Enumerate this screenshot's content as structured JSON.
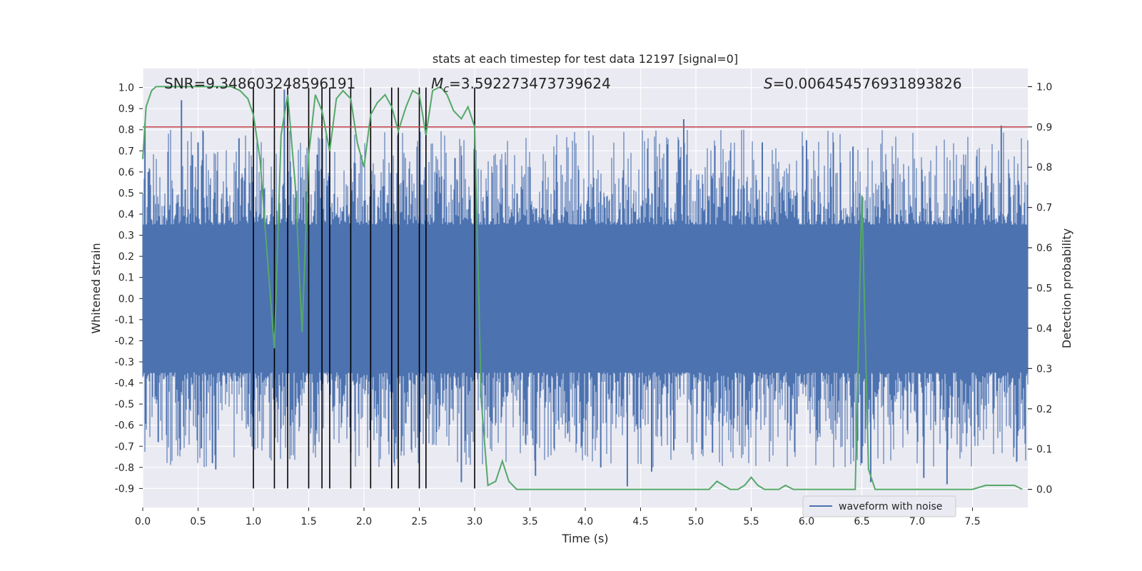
{
  "chart_data": {
    "type": "line",
    "title": "stats at each timestep for test data 12197 [signal=0]",
    "xlabel": "Time (s)",
    "ylabel_left": "Whitened strain",
    "ylabel_right": "Detection probability",
    "xlim": [
      0.0,
      8.0
    ],
    "ylim_left": [
      -0.99,
      1.09
    ],
    "ylim_right": [
      -0.045,
      1.045
    ],
    "x_ticks": [
      "0.0",
      "0.5",
      "1.0",
      "1.5",
      "2.0",
      "2.5",
      "3.0",
      "3.5",
      "4.0",
      "4.5",
      "5.0",
      "5.5",
      "6.0",
      "6.5",
      "7.0",
      "7.5"
    ],
    "y_ticks_left": [
      "1.0",
      "0.9",
      "0.8",
      "0.7",
      "0.6",
      "0.5",
      "0.4",
      "0.3",
      "0.2",
      "0.1",
      "0.0",
      "-0.1",
      "-0.2",
      "-0.3",
      "-0.4",
      "-0.5",
      "-0.6",
      "-0.7",
      "-0.8",
      "-0.9"
    ],
    "y_ticks_right": [
      "1.0",
      "0.9",
      "0.8",
      "0.7",
      "0.6",
      "0.5",
      "0.4",
      "0.3",
      "0.2",
      "0.1",
      "0.0"
    ],
    "annotations": {
      "snr": "SNR=9.348603248596191",
      "mc_symbol": "M",
      "mc_sub": "c",
      "mc_value": "=3.592273473739624",
      "s_symbol": "S",
      "s_value": "=0.006454576931893826"
    },
    "legend": [
      "waveform with noise"
    ],
    "threshold_line": {
      "axis": "right",
      "value": 0.9,
      "color": "#c44e52"
    },
    "vertical_lines": [
      1.0,
      1.19,
      1.31,
      1.5,
      1.62,
      1.69,
      1.88,
      2.06,
      2.25,
      2.31,
      2.5,
      2.56,
      3.0
    ],
    "vertical_lines_range_left": [
      -0.9,
      1.0
    ],
    "noise_series": {
      "name": "waveform with noise",
      "color": "#4c72b0",
      "envelope_core": 0.35,
      "spikes": [
        [
          0.02,
          0.83
        ],
        [
          0.05,
          0.6
        ],
        [
          0.35,
          0.94
        ],
        [
          0.5,
          0.74
        ],
        [
          0.45,
          0.68
        ],
        [
          0.87,
          0.76
        ],
        [
          1.28,
          0.99
        ],
        [
          4.89,
          0.85
        ],
        [
          6.0,
          0.75
        ],
        [
          7.76,
          0.82
        ],
        [
          5.6,
          0.74
        ],
        [
          6.42,
          0.72
        ],
        [
          0.53,
          -0.71
        ],
        [
          0.63,
          -0.78
        ],
        [
          0.66,
          -0.81
        ],
        [
          0.14,
          -0.68
        ],
        [
          1.88,
          -0.73
        ],
        [
          3.55,
          -0.84
        ],
        [
          4.14,
          -0.8
        ],
        [
          4.38,
          -0.89
        ],
        [
          4.6,
          -0.82
        ],
        [
          6.58,
          -0.87
        ],
        [
          7.06,
          -0.85
        ],
        [
          7.27,
          -0.88
        ],
        [
          2.88,
          -0.87
        ],
        [
          6.5,
          -0.78
        ],
        [
          4.8,
          -0.72
        ],
        [
          5.15,
          -0.73
        ]
      ]
    },
    "probability_series": {
      "name": "detection probability",
      "color": "#55a868",
      "x": [
        0.0,
        0.03,
        0.08,
        0.12,
        0.2,
        0.3,
        0.4,
        0.5,
        0.6,
        0.7,
        0.8,
        0.88,
        0.95,
        1.0,
        1.06,
        1.12,
        1.19,
        1.25,
        1.31,
        1.38,
        1.44,
        1.5,
        1.56,
        1.62,
        1.69,
        1.75,
        1.81,
        1.88,
        1.94,
        2.0,
        2.06,
        2.12,
        2.19,
        2.25,
        2.31,
        2.38,
        2.44,
        2.5,
        2.56,
        2.62,
        2.69,
        2.75,
        2.81,
        2.88,
        2.94,
        3.0,
        3.06,
        3.12,
        3.19,
        3.25,
        3.31,
        3.38,
        3.5,
        3.62,
        3.75,
        3.88,
        4.0,
        4.12,
        4.25,
        4.38,
        4.5,
        4.62,
        4.75,
        4.88,
        5.0,
        5.12,
        5.19,
        5.25,
        5.31,
        5.38,
        5.44,
        5.5,
        5.56,
        5.62,
        5.69,
        5.75,
        5.81,
        5.88,
        5.94,
        6.06,
        6.19,
        6.31,
        6.44,
        6.5,
        6.56,
        6.62,
        6.69,
        6.75,
        6.88,
        7.0,
        7.12,
        7.25,
        7.38,
        7.5,
        7.62,
        7.69,
        7.75,
        7.81,
        7.88,
        7.95
      ],
      "y": [
        0.82,
        0.95,
        0.99,
        1.0,
        1.0,
        1.0,
        1.0,
        1.0,
        1.0,
        1.0,
        1.0,
        0.99,
        0.97,
        0.93,
        0.82,
        0.6,
        0.35,
        0.88,
        0.98,
        0.75,
        0.39,
        0.83,
        0.98,
        0.94,
        0.84,
        0.97,
        0.99,
        0.97,
        0.86,
        0.8,
        0.93,
        0.96,
        0.98,
        0.95,
        0.89,
        0.95,
        0.99,
        0.98,
        0.88,
        0.99,
        1.0,
        0.98,
        0.94,
        0.92,
        0.95,
        0.9,
        0.22,
        0.01,
        0.02,
        0.07,
        0.02,
        0.0,
        0.0,
        0.0,
        0.0,
        0.0,
        0.0,
        0.0,
        0.0,
        0.0,
        0.0,
        0.0,
        0.0,
        0.0,
        0.0,
        0.0,
        0.02,
        0.01,
        0.0,
        0.0,
        0.01,
        0.03,
        0.01,
        0.0,
        0.0,
        0.0,
        0.01,
        0.0,
        0.0,
        0.0,
        0.0,
        0.0,
        0.0,
        0.73,
        0.05,
        0.0,
        0.0,
        0.0,
        0.0,
        0.0,
        0.0,
        0.0,
        0.0,
        0.0,
        0.01,
        0.01,
        0.01,
        0.01,
        0.01,
        0.0
      ]
    },
    "grid": true
  }
}
